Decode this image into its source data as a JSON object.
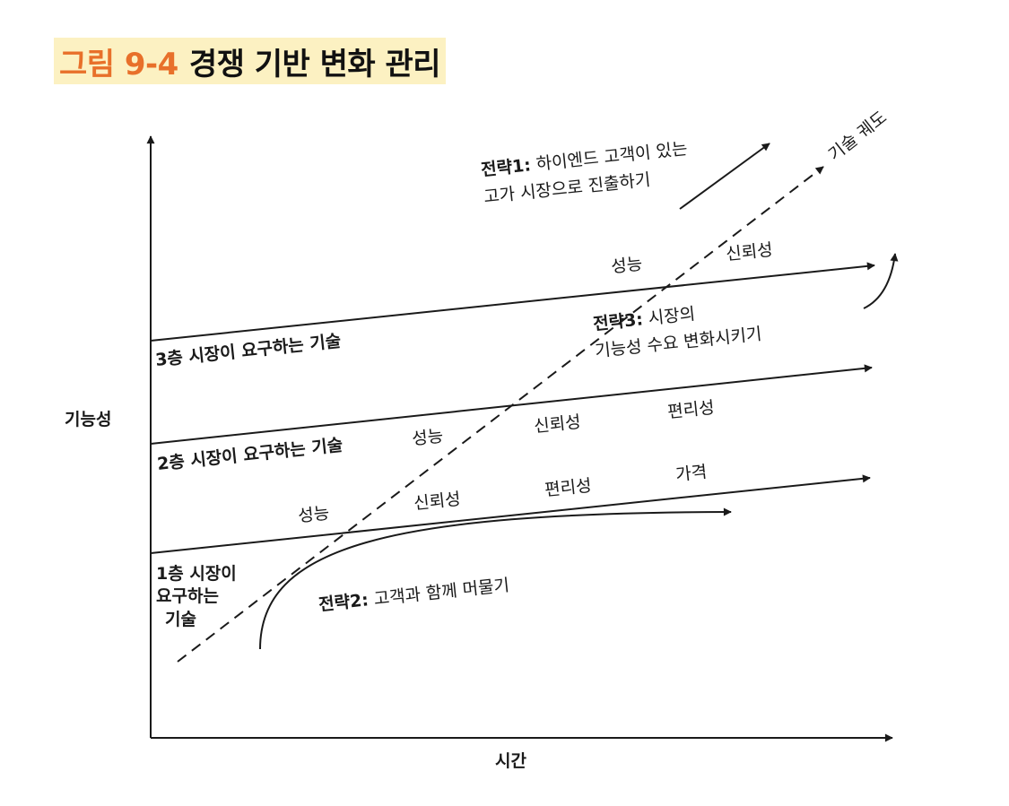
{
  "title": {
    "number": "그림 9-4",
    "text": "경쟁 기반 변화 관리"
  },
  "axes": {
    "y_label": "기능성",
    "x_label": "시간"
  },
  "trajectory": {
    "label": "기술 궤도"
  },
  "tiers": [
    {
      "label": "3층 시장이 요구하는 기술",
      "attributes": [
        "성능",
        "신뢰성"
      ]
    },
    {
      "label": "2층 시장이 요구하는 기술",
      "attributes": [
        "성능",
        "신뢰성",
        "편리성"
      ]
    },
    {
      "label_lines": [
        "1층 시장이",
        "요구하는",
        "기술"
      ],
      "attributes": [
        "성능",
        "신뢰성",
        "편리성",
        "가격"
      ]
    }
  ],
  "strategies": {
    "s1": {
      "key": "전략1:",
      "line1": " 하이엔드 고객이 있는",
      "line2": "고가 시장으로 진출하기"
    },
    "s2": {
      "key": "전략2:",
      "line1": " 고객과 함께 머물기"
    },
    "s3": {
      "key": "전략3:",
      "line1": " 시장의",
      "line2": "기능성 수요 변화시키기"
    }
  }
}
